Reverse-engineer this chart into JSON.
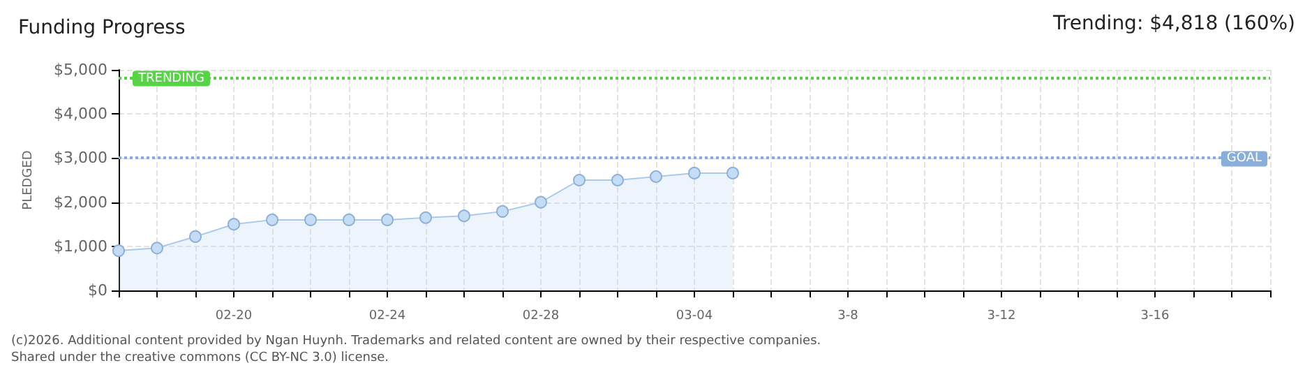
{
  "chart_data": {
    "type": "area",
    "title": "Funding Progress",
    "annotations": [
      "Trending: $4,818 (160%)",
      "(c)2026. Additional content provided by Ngan Huynh. Trademarks and related content are owned by their respective companies.",
      "Shared under the creative commons (CC BY-NC 3.0) license."
    ],
    "ylabel": "PLEDGED",
    "categories": [
      null,
      null,
      null,
      "02-20",
      null,
      null,
      null,
      "02-24",
      null,
      null,
      null,
      "02-28",
      null,
      null,
      null,
      "03-04",
      null,
      null,
      null,
      "3-8",
      null,
      null,
      null,
      "3-12",
      null,
      null,
      null,
      "3-16",
      null,
      null,
      null
    ],
    "series": [
      {
        "color": "#a9c9ee",
        "values": [
          900,
          960,
          1220,
          1500,
          1600,
          1600,
          1600,
          1600,
          1650,
          1690,
          1790,
          2000,
          2500,
          2500,
          2580,
          2660,
          2660,
          null,
          null,
          null,
          null,
          null,
          null,
          null,
          null,
          null,
          null,
          null,
          null,
          null,
          null
        ]
      }
    ],
    "ylim": [
      0,
      5000
    ],
    "yticks": [
      {
        "value": 0,
        "label": "$0"
      },
      {
        "value": 1000,
        "label": "$1,000"
      },
      {
        "value": 2000,
        "label": "$2,000"
      },
      {
        "value": 3000,
        "label": "$3,000"
      },
      {
        "value": 4000,
        "label": "$4,000"
      },
      {
        "value": 5000,
        "label": "$5,000"
      }
    ],
    "ref_lines": [
      {
        "axis": "y",
        "value": 4818,
        "label": "TRENDING",
        "color": "#55d444",
        "line_style": "dotted"
      },
      {
        "axis": "y",
        "value": 3000,
        "label": "GOAL",
        "color": "#8aaedb",
        "line_style": "dotted"
      }
    ],
    "grid": true,
    "marker": "circle"
  }
}
